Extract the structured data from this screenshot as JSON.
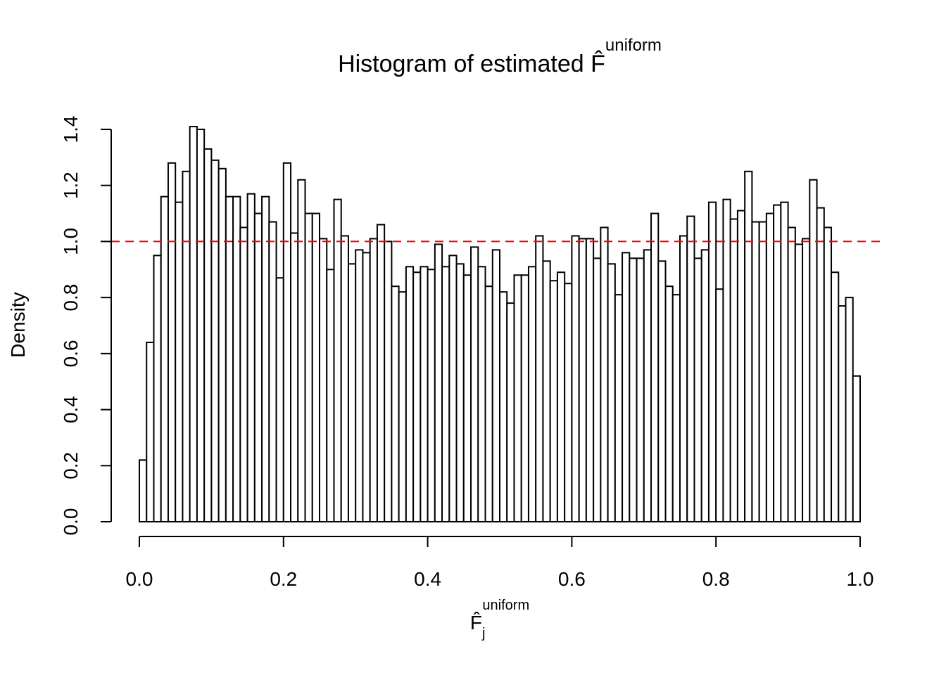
{
  "chart_data": {
    "type": "histogram",
    "title": "Histogram of estimated F̂",
    "title_superscript": "uniform",
    "xlabel": {
      "base": "F̂",
      "subscript": "j",
      "superscript": "uniform"
    },
    "ylabel": "Density",
    "bins": [
      0,
      0.01,
      0.02,
      0.03,
      0.04,
      0.05,
      0.06,
      0.07,
      0.08,
      0.09,
      0.1,
      0.11,
      0.12,
      0.13,
      0.14,
      0.15,
      0.16,
      0.17,
      0.18,
      0.19,
      0.2,
      0.21,
      0.22,
      0.23,
      0.24,
      0.25,
      0.26,
      0.27,
      0.28,
      0.29,
      0.3,
      0.31,
      0.32,
      0.33,
      0.34,
      0.35,
      0.36,
      0.37,
      0.38,
      0.39,
      0.4,
      0.41,
      0.42,
      0.43,
      0.44,
      0.45,
      0.46,
      0.47,
      0.48,
      0.49,
      0.5,
      0.51,
      0.52,
      0.53,
      0.54,
      0.55,
      0.56,
      0.57,
      0.58,
      0.59,
      0.6,
      0.61,
      0.62,
      0.63,
      0.64,
      0.65,
      0.66,
      0.67,
      0.68,
      0.69,
      0.7,
      0.71,
      0.72,
      0.73,
      0.74,
      0.75,
      0.76,
      0.77,
      0.78,
      0.79,
      0.8,
      0.81,
      0.82,
      0.83,
      0.84,
      0.85,
      0.86,
      0.87,
      0.88,
      0.89,
      0.9,
      0.91,
      0.92,
      0.93,
      0.94,
      0.95,
      0.96,
      0.97,
      0.98,
      0.99,
      1
    ],
    "values": [
      0.22,
      0.64,
      0.95,
      1.16,
      1.28,
      1.14,
      1.25,
      1.41,
      1.4,
      1.33,
      1.29,
      1.26,
      1.16,
      1.16,
      1.05,
      1.17,
      1.1,
      1.16,
      1.07,
      0.87,
      1.28,
      1.03,
      1.22,
      1.1,
      1.1,
      1.01,
      0.9,
      1.15,
      1.02,
      0.92,
      0.97,
      0.96,
      1.01,
      1.06,
      1.0,
      0.84,
      0.82,
      0.91,
      0.89,
      0.91,
      0.9,
      0.99,
      0.91,
      0.95,
      0.92,
      0.88,
      0.98,
      0.91,
      0.84,
      0.97,
      0.82,
      0.78,
      0.88,
      0.88,
      0.91,
      1.02,
      0.93,
      0.86,
      0.89,
      0.85,
      1.02,
      1.01,
      1.01,
      0.94,
      1.05,
      0.92,
      0.81,
      0.96,
      0.94,
      0.94,
      0.97,
      1.1,
      0.93,
      0.84,
      0.81,
      1.02,
      1.09,
      0.94,
      0.97,
      1.14,
      0.83,
      1.15,
      1.08,
      1.11,
      1.25,
      1.07,
      1.07,
      1.1,
      1.13,
      1.14,
      1.05,
      0.99,
      1.01,
      1.22,
      1.12,
      1.05,
      0.89,
      0.77,
      0.8,
      0.52
    ],
    "color": "#ffffff",
    "edgecolor": "#000000",
    "hline": 1,
    "hline_color": "#ff0000",
    "xlim": [
      0,
      1
    ],
    "xticks": [
      {
        "value": 0,
        "label": "0.0"
      },
      0.2,
      0.4,
      0.6,
      0.8,
      {
        "value": 1,
        "label": "1.0"
      }
    ],
    "ylim": [
      0,
      1.4
    ],
    "yticks": [
      {
        "value": 0,
        "label": "0.0"
      },
      0.2,
      0.4,
      0.6,
      0.8,
      {
        "value": 1,
        "label": "1.0"
      },
      1.2,
      1.4
    ]
  }
}
